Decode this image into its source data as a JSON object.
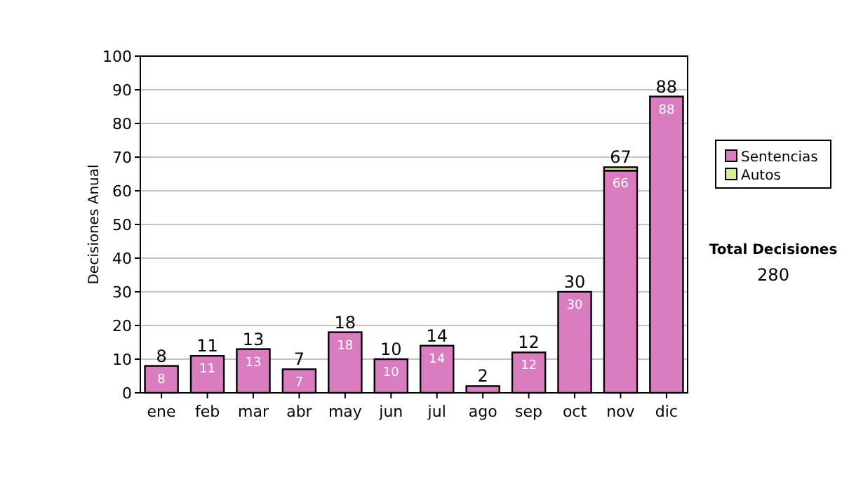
{
  "chart_data": {
    "type": "bar",
    "stacked": true,
    "ylabel": "Decisiones Anual",
    "categories": [
      "ene",
      "feb",
      "mar",
      "abr",
      "may",
      "jun",
      "jul",
      "ago",
      "sep",
      "oct",
      "nov",
      "dic"
    ],
    "series": [
      {
        "name": "Sentencias",
        "color": "#d97cc0",
        "values": [
          8,
          11,
          13,
          7,
          18,
          10,
          14,
          2,
          12,
          30,
          66,
          88
        ],
        "value_labels": [
          "8",
          "11",
          "13",
          "7",
          "18",
          "10",
          "14",
          null,
          "12",
          "30",
          "66",
          "88"
        ]
      },
      {
        "name": "Autos",
        "color": "#d6ea90",
        "values": [
          0,
          0,
          0,
          0,
          0,
          0,
          0,
          0,
          0,
          0,
          1,
          0
        ]
      }
    ],
    "totals": [
      "8",
      "11",
      "13",
      "7",
      "18",
      "10",
      "14",
      "2",
      "12",
      "30",
      "67",
      "88"
    ],
    "ylim": [
      0,
      100
    ],
    "yticks": [
      0,
      10,
      20,
      30,
      40,
      50,
      60,
      70,
      80,
      90,
      100
    ],
    "grid": "y",
    "legend": "right",
    "annotations": [
      "Total Decisiones",
      "280"
    ]
  }
}
